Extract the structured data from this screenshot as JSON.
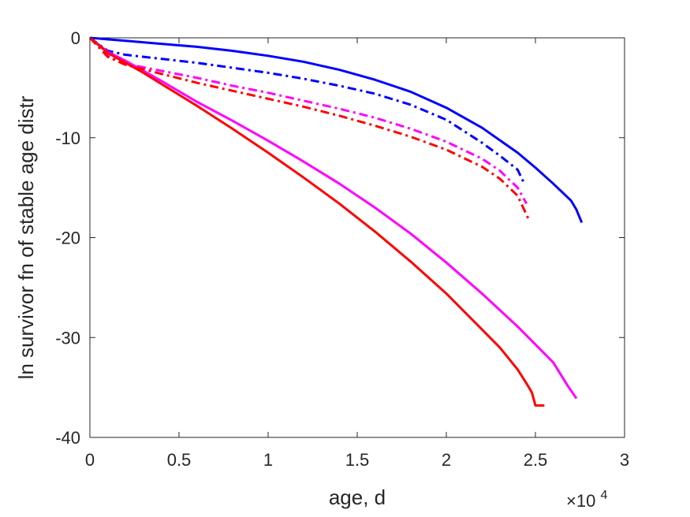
{
  "chart_data": {
    "type": "line",
    "title": "",
    "xlabel": "age, d",
    "ylabel": "ln survivor fn of stable age distr",
    "x_exponent_label": {
      "base": "×10",
      "exponent": "4"
    },
    "xlim": [
      0,
      30000
    ],
    "ylim": [
      -40,
      0
    ],
    "xticks": [
      0,
      5000,
      10000,
      15000,
      20000,
      25000,
      30000
    ],
    "xtick_labels": [
      "0",
      "0.5",
      "1",
      "1.5",
      "2",
      "2.5",
      "3"
    ],
    "yticks": [
      0,
      -10,
      -20,
      -30,
      -40
    ],
    "ytick_labels": [
      "0",
      "-10",
      "-20",
      "-30",
      "-40"
    ],
    "grid": false,
    "legend": "none",
    "series": [
      {
        "color": "#0000ff",
        "style": "solid",
        "x": [
          0,
          2000,
          4000,
          6000,
          8000,
          10000,
          12000,
          14000,
          16000,
          18000,
          20000,
          22000,
          24000,
          25000,
          26000,
          27000,
          27300,
          27600
        ],
        "y": [
          0,
          -0.3,
          -0.6,
          -0.9,
          -1.3,
          -1.8,
          -2.4,
          -3.2,
          -4.2,
          -5.4,
          -7.0,
          -9.0,
          -11.5,
          -13.0,
          -14.6,
          -16.3,
          -17.2,
          -18.5
        ]
      },
      {
        "color": "#0000ff",
        "style": "dashdot",
        "x": [
          0,
          1000,
          2000,
          4000,
          6000,
          8000,
          10000,
          12000,
          14000,
          16000,
          18000,
          20000,
          22000,
          23000,
          24000,
          24400
        ],
        "y": [
          0,
          -1.3,
          -1.7,
          -2.1,
          -2.5,
          -3.0,
          -3.5,
          -4.1,
          -4.8,
          -5.6,
          -6.7,
          -8.2,
          -10.5,
          -11.8,
          -13.2,
          -14.7
        ]
      },
      {
        "color": "#ff00ff",
        "style": "solid",
        "x": [
          0,
          1000,
          2000,
          3000,
          4000,
          6000,
          8000,
          10000,
          12000,
          14000,
          16000,
          18000,
          20000,
          22000,
          24000,
          26000,
          26800,
          27300
        ],
        "y": [
          0,
          -1.4,
          -2.3,
          -3.3,
          -4.3,
          -6.4,
          -8.3,
          -10.3,
          -12.4,
          -14.6,
          -17.0,
          -19.6,
          -22.5,
          -25.6,
          -28.9,
          -32.5,
          -34.8,
          -36.1
        ]
      },
      {
        "color": "#ff00ff",
        "style": "dashdot",
        "x": [
          0,
          1000,
          2000,
          4000,
          6000,
          8000,
          10000,
          12000,
          14000,
          16000,
          18000,
          20000,
          22000,
          23000,
          24000,
          24500
        ],
        "y": [
          0,
          -1.8,
          -2.6,
          -3.3,
          -4.0,
          -4.8,
          -5.5,
          -6.3,
          -7.1,
          -8.0,
          -9.1,
          -10.4,
          -12.1,
          -13.3,
          -15.0,
          -16.6
        ]
      },
      {
        "color": "#ff0000",
        "style": "solid",
        "x": [
          0,
          1000,
          2000,
          3000,
          4000,
          6000,
          8000,
          10000,
          12000,
          14000,
          16000,
          18000,
          20000,
          22000,
          23000,
          24000,
          24500,
          24800,
          25000,
          25500
        ],
        "y": [
          0,
          -1.5,
          -2.5,
          -3.5,
          -4.6,
          -6.8,
          -9.1,
          -11.5,
          -14.0,
          -16.6,
          -19.4,
          -22.4,
          -25.6,
          -29.2,
          -31.0,
          -33.2,
          -34.6,
          -35.5,
          -36.8,
          -36.8
        ]
      },
      {
        "color": "#ff0000",
        "style": "dashdot",
        "x": [
          0,
          1000,
          2000,
          4000,
          6000,
          8000,
          10000,
          12000,
          14000,
          16000,
          18000,
          20000,
          22000,
          23000,
          24000,
          24600
        ],
        "y": [
          0,
          -1.9,
          -2.7,
          -3.6,
          -4.5,
          -5.3,
          -6.1,
          -6.9,
          -7.8,
          -8.8,
          -9.9,
          -11.2,
          -12.9,
          -14.1,
          -15.8,
          -18.1
        ]
      }
    ]
  }
}
